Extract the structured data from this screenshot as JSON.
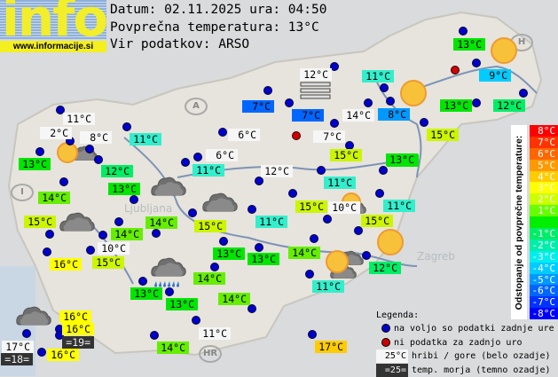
{
  "header": {
    "logo_text": "info",
    "site": "www.informacije.si",
    "date_line": "Datum: 02.11.2025 ura: 04:50",
    "avg_line": "Povprečna temperatura: 13°C",
    "source_line": "Vir podatkov: ARSO"
  },
  "map_labels": {
    "zagreb": "Zagreb",
    "ljubljana": "Ljubljana",
    "italy": "I",
    "austria": "A",
    "hungary": "H",
    "croatia": "HR"
  },
  "stations": [
    {
      "temp": "11°C"
    },
    {
      "temp": "2°C"
    },
    {
      "temp": "8°C"
    },
    {
      "temp": "13°C"
    },
    {
      "temp": "12°C"
    },
    {
      "temp": "11°C"
    },
    {
      "temp": "13°C"
    },
    {
      "temp": "14°C"
    },
    {
      "temp": "15°C"
    },
    {
      "temp": "14°C"
    },
    {
      "temp": "14°C"
    },
    {
      "temp": "10°C"
    },
    {
      "temp": "16°C"
    },
    {
      "temp": "15°C"
    },
    {
      "temp": "15°C"
    },
    {
      "temp": "11°C"
    },
    {
      "temp": "6°C"
    },
    {
      "temp": "6°C"
    },
    {
      "temp": "7°C"
    },
    {
      "temp": "7°C"
    },
    {
      "temp": "12°C"
    },
    {
      "temp": "14°C"
    },
    {
      "temp": "7°C"
    },
    {
      "temp": "15°C"
    },
    {
      "temp": "12°C"
    },
    {
      "temp": "11°C"
    },
    {
      "temp": "13°C"
    },
    {
      "temp": "15°C"
    },
    {
      "temp": "10°C"
    },
    {
      "temp": "11°C"
    },
    {
      "temp": "11°C"
    },
    {
      "temp": "15°C"
    },
    {
      "temp": "13°C"
    },
    {
      "temp": "13°C"
    },
    {
      "temp": "14°C"
    },
    {
      "temp": "12°C"
    },
    {
      "temp": "11°C"
    },
    {
      "temp": "14°C"
    },
    {
      "temp": "13°C"
    },
    {
      "temp": "13°C"
    },
    {
      "temp": "14°C"
    },
    {
      "temp": "11°C"
    },
    {
      "temp": "8°C"
    },
    {
      "temp": "13°C"
    },
    {
      "temp": "9°C"
    },
    {
      "temp": "13°C"
    },
    {
      "temp": "12°C"
    },
    {
      "temp": "15°C"
    },
    {
      "temp": "13°C"
    },
    {
      "temp": "16°C"
    },
    {
      "temp": "16°C"
    },
    {
      "temp": "=19="
    },
    {
      "temp": "17°C"
    },
    {
      "temp": "=18="
    },
    {
      "temp": "16°C"
    },
    {
      "temp": "11°C"
    },
    {
      "temp": "14°C"
    },
    {
      "temp": "17°C"
    }
  ],
  "scale": {
    "title": "Odstopanje od povprečne temperature:",
    "steps": [
      {
        "label": "8°C",
        "color": "#ff0000"
      },
      {
        "label": "7°C",
        "color": "#ff3300"
      },
      {
        "label": "6°C",
        "color": "#ff6600"
      },
      {
        "label": "5°C",
        "color": "#ff9900"
      },
      {
        "label": "4°C",
        "color": "#ffcc00"
      },
      {
        "label": "3°C",
        "color": "#ffff00"
      },
      {
        "label": "2°C",
        "color": "#ccff00"
      },
      {
        "label": "1°C",
        "color": "#66ff00"
      },
      {
        "label": "",
        "color": "#00ee00"
      },
      {
        "label": "-1°C",
        "color": "#00ee66"
      },
      {
        "label": "-2°C",
        "color": "#00eeaa"
      },
      {
        "label": "-3°C",
        "color": "#00eeee"
      },
      {
        "label": "-4°C",
        "color": "#00ccff"
      },
      {
        "label": "-5°C",
        "color": "#0099ff"
      },
      {
        "label": "-6°C",
        "color": "#0066ff"
      },
      {
        "label": "-7°C",
        "color": "#0033ff"
      },
      {
        "label": "-8°C",
        "color": "#0000ff"
      }
    ]
  },
  "legend": {
    "title": "Legenda:",
    "available": "na voljo so podatki zadnje ure",
    "unavailable": "ni podatka za zadnjo uro",
    "hill_sample": "25°C",
    "hill_text": "hribi / gore (belo ozadje)",
    "sea_sample": "=25=",
    "sea_text": "temp. morja (temno ozadje)",
    "dot_available_color": "#0000cc",
    "dot_unavailable_color": "#cc0000"
  }
}
